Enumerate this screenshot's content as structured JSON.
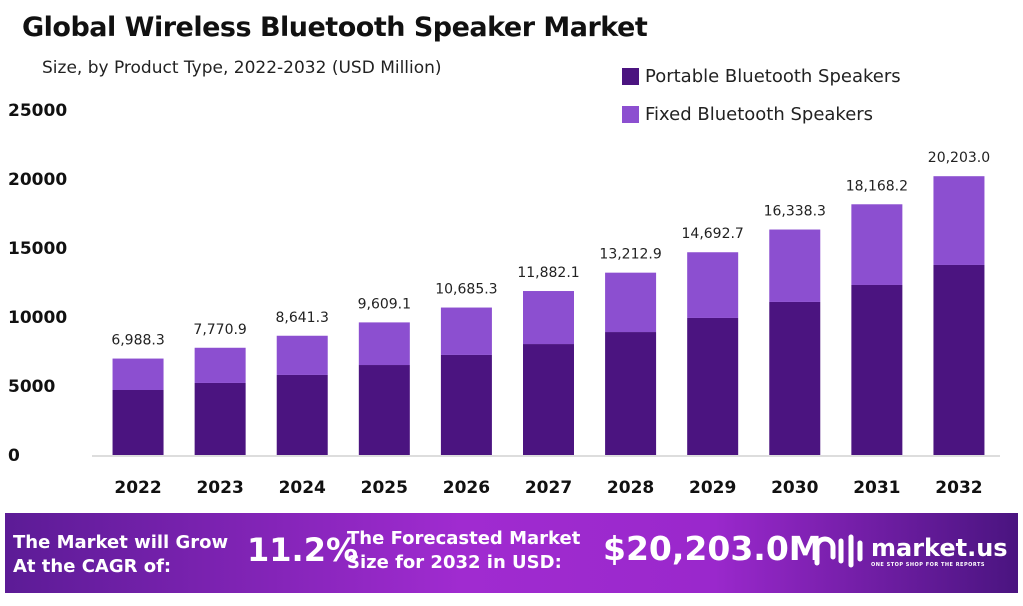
{
  "chart_data": {
    "type": "bar",
    "stacked": true,
    "title": "Global Wireless Bluetooth Speaker Market",
    "subtitle": "Size, by Product Type, 2022-2032 (USD Million)",
    "categories": [
      "2022",
      "2023",
      "2024",
      "2025",
      "2026",
      "2027",
      "2028",
      "2029",
      "2030",
      "2031",
      "2032"
    ],
    "series": [
      {
        "name": "Portable Bluetooth Speakers",
        "color": "#4b1480",
        "values": [
          4710,
          5220,
          5800,
          6520,
          7250,
          8040,
          8910,
          9930,
          11090,
          12320,
          13770
        ]
      },
      {
        "name": "Fixed Bluetooth Speakers",
        "color": "#8c4fd0",
        "values": [
          2278.3,
          2550.9,
          2841.3,
          3089.1,
          3435.3,
          3842.1,
          4302.9,
          4762.7,
          5248.3,
          5848.2,
          6433.0
        ]
      }
    ],
    "totals_labels": [
      "6,988.3",
      "7,770.9",
      "8,641.3",
      "9,609.1",
      "10,685.3",
      "11,882.1",
      "13,212.9",
      "14,692.7",
      "16,338.3",
      "18,168.2",
      "20,203.0"
    ],
    "ylim": [
      0,
      25000
    ],
    "yticks": [
      "0",
      "5000",
      "10000",
      "15000",
      "20000",
      "25000"
    ],
    "grid": false,
    "legend": "top-right"
  },
  "banner": {
    "cagr_text_1": "The Market will Grow",
    "cagr_text_2": "At the CAGR of:",
    "cagr_value": "11.2%",
    "forecast_text_1": "The Forecasted Market",
    "forecast_text_2": "Size for 2032 in USD:",
    "forecast_value": "$20,203.0M",
    "logo_text": "market.us",
    "logo_tagline": "ONE STOP SHOP FOR THE REPORTS"
  }
}
